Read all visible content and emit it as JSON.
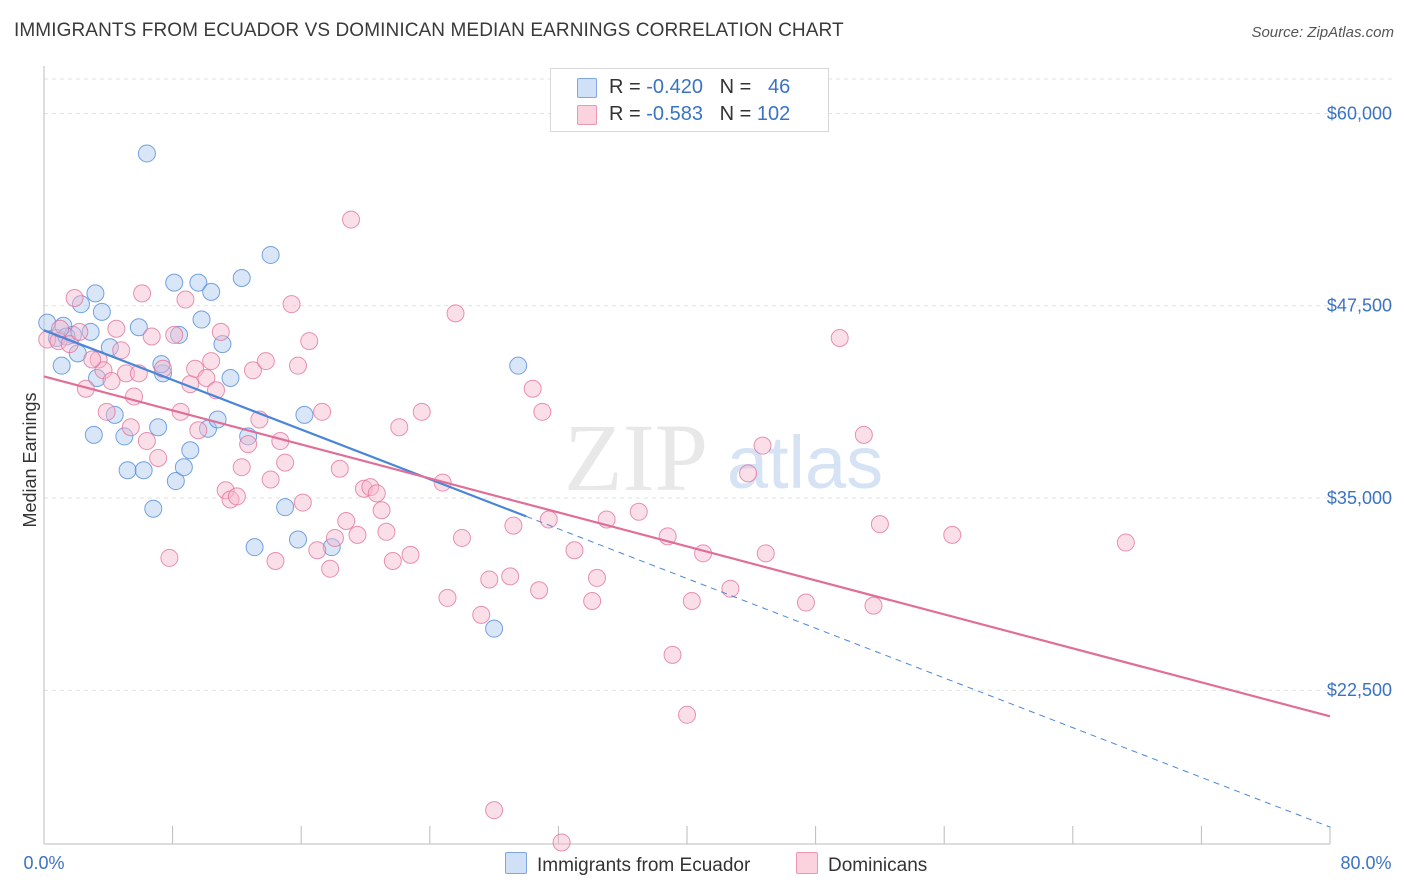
{
  "header": {
    "title": "IMMIGRANTS FROM ECUADOR VS DOMINICAN MEDIAN EARNINGS CORRELATION CHART",
    "source": "Source: ZipAtlas.com"
  },
  "watermark": {
    "zip": "ZIP",
    "atlas": "atlas"
  },
  "legend_top": {
    "rows": [
      {
        "r_label": "R = ",
        "r_value": "-0.420",
        "n_label": "N = ",
        "n_value": "46",
        "color": "#aac8f0"
      },
      {
        "r_label": "R = ",
        "r_value": "-0.583",
        "n_label": "N = ",
        "n_value": "102",
        "color": "#f6b8cb"
      }
    ]
  },
  "legend_bottom": [
    {
      "label": "Immigrants from Ecuador",
      "color": "#aac8f0"
    },
    {
      "label": "Dominicans",
      "color": "#f6b8cb"
    }
  ],
  "chart_data": {
    "type": "scatter",
    "title": "IMMIGRANTS FROM ECUADOR VS DOMINICAN MEDIAN EARNINGS CORRELATION CHART",
    "xlabel": "",
    "ylabel": "Median Earnings",
    "xlim": [
      0,
      80
    ],
    "ylim": [
      12500,
      62500
    ],
    "x_tick_labels": [
      "0.0%",
      "80.0%"
    ],
    "y_ticks": [
      22500,
      35000,
      47500,
      60000
    ],
    "y_tick_labels": [
      "$22,500",
      "$35,000",
      "$47,500",
      "$60,000"
    ],
    "grid": true,
    "legend_position": "top-center",
    "series": [
      {
        "name": "Immigrants from Ecuador",
        "color": "#4a86d8",
        "fill": "#aac8f0",
        "points": [
          [
            0.2,
            46.4
          ],
          [
            0.8,
            45.4
          ],
          [
            1.2,
            46.2
          ],
          [
            1.8,
            45.6
          ],
          [
            1.1,
            43.6
          ],
          [
            2.3,
            47.6
          ],
          [
            2.1,
            44.4
          ],
          [
            3.2,
            48.3
          ],
          [
            3.6,
            47.1
          ],
          [
            4.1,
            44.8
          ],
          [
            3.3,
            42.8
          ],
          [
            4.4,
            40.4
          ],
          [
            3.1,
            39.1
          ],
          [
            5.0,
            39.0
          ],
          [
            5.2,
            36.8
          ],
          [
            5.9,
            46.1
          ],
          [
            6.2,
            36.8
          ],
          [
            6.8,
            34.3
          ],
          [
            7.1,
            39.6
          ],
          [
            7.4,
            43.1
          ],
          [
            7.3,
            43.7
          ],
          [
            8.2,
            36.1
          ],
          [
            8.1,
            49.0
          ],
          [
            8.4,
            45.6
          ],
          [
            8.7,
            37.0
          ],
          [
            9.1,
            38.1
          ],
          [
            9.6,
            49.0
          ],
          [
            9.8,
            46.6
          ],
          [
            10.2,
            39.5
          ],
          [
            10.4,
            48.4
          ],
          [
            10.8,
            40.1
          ],
          [
            11.1,
            45.0
          ],
          [
            11.6,
            42.8
          ],
          [
            12.3,
            49.3
          ],
          [
            12.7,
            39.0
          ],
          [
            13.1,
            31.8
          ],
          [
            14.1,
            50.8
          ],
          [
            15.0,
            34.4
          ],
          [
            15.8,
            32.3
          ],
          [
            16.2,
            40.4
          ],
          [
            17.9,
            31.8
          ],
          [
            29.5,
            43.6
          ],
          [
            28.0,
            26.5
          ],
          [
            6.4,
            57.4
          ],
          [
            2.9,
            45.8
          ],
          [
            1.4,
            45.5
          ]
        ],
        "trend": {
          "x": [
            0,
            30
          ],
          "y": [
            45.9,
            33.8
          ],
          "dashed_to": [
            80,
            13.6
          ]
        }
      },
      {
        "name": "Dominicans",
        "color": "#e06f98",
        "fill": "#f6b8cb",
        "points": [
          [
            0.2,
            45.3
          ],
          [
            0.9,
            45.2
          ],
          [
            1.6,
            45.0
          ],
          [
            1.9,
            48.0
          ],
          [
            2.6,
            42.1
          ],
          [
            3.4,
            44.0
          ],
          [
            3.7,
            43.3
          ],
          [
            3.9,
            40.6
          ],
          [
            4.5,
            46.0
          ],
          [
            4.8,
            44.6
          ],
          [
            5.1,
            43.1
          ],
          [
            5.4,
            39.6
          ],
          [
            5.6,
            41.6
          ],
          [
            5.9,
            43.1
          ],
          [
            6.1,
            48.3
          ],
          [
            6.4,
            38.7
          ],
          [
            6.7,
            45.5
          ],
          [
            7.1,
            37.6
          ],
          [
            7.4,
            43.4
          ],
          [
            7.8,
            31.1
          ],
          [
            8.1,
            45.6
          ],
          [
            8.5,
            40.6
          ],
          [
            8.8,
            47.9
          ],
          [
            9.1,
            42.4
          ],
          [
            9.4,
            43.4
          ],
          [
            9.6,
            39.4
          ],
          [
            10.1,
            42.8
          ],
          [
            10.4,
            43.9
          ],
          [
            10.7,
            42.0
          ],
          [
            11.0,
            45.8
          ],
          [
            11.3,
            35.5
          ],
          [
            11.6,
            34.9
          ],
          [
            12.0,
            35.1
          ],
          [
            12.3,
            37.0
          ],
          [
            12.7,
            38.5
          ],
          [
            13.0,
            43.3
          ],
          [
            13.4,
            40.1
          ],
          [
            13.8,
            43.9
          ],
          [
            14.1,
            36.2
          ],
          [
            14.4,
            30.9
          ],
          [
            14.7,
            38.7
          ],
          [
            15.0,
            37.3
          ],
          [
            15.4,
            47.6
          ],
          [
            15.8,
            43.6
          ],
          [
            16.1,
            34.7
          ],
          [
            16.5,
            45.2
          ],
          [
            17.0,
            31.6
          ],
          [
            17.3,
            40.6
          ],
          [
            17.8,
            30.4
          ],
          [
            18.1,
            32.4
          ],
          [
            18.4,
            36.9
          ],
          [
            18.8,
            33.5
          ],
          [
            19.1,
            53.1
          ],
          [
            19.5,
            32.6
          ],
          [
            19.9,
            35.6
          ],
          [
            20.3,
            35.7
          ],
          [
            20.7,
            35.3
          ],
          [
            21.0,
            34.2
          ],
          [
            21.3,
            32.8
          ],
          [
            21.7,
            30.9
          ],
          [
            22.1,
            39.6
          ],
          [
            22.8,
            31.3
          ],
          [
            23.5,
            40.6
          ],
          [
            24.8,
            36.0
          ],
          [
            25.1,
            28.5
          ],
          [
            25.6,
            47.0
          ],
          [
            26.0,
            32.4
          ],
          [
            27.2,
            27.4
          ],
          [
            27.7,
            29.7
          ],
          [
            28.0,
            14.7
          ],
          [
            29.0,
            29.9
          ],
          [
            29.2,
            33.2
          ],
          [
            30.4,
            42.1
          ],
          [
            30.8,
            29.0
          ],
          [
            31.0,
            40.6
          ],
          [
            31.4,
            33.6
          ],
          [
            32.2,
            12.6
          ],
          [
            33.0,
            31.6
          ],
          [
            34.1,
            28.3
          ],
          [
            34.4,
            29.8
          ],
          [
            35.0,
            33.6
          ],
          [
            37.0,
            34.1
          ],
          [
            38.8,
            32.5
          ],
          [
            39.1,
            24.8
          ],
          [
            40.0,
            20.9
          ],
          [
            40.3,
            28.3
          ],
          [
            41.0,
            31.4
          ],
          [
            42.7,
            29.1
          ],
          [
            43.8,
            36.6
          ],
          [
            44.7,
            38.4
          ],
          [
            44.9,
            31.4
          ],
          [
            47.4,
            28.2
          ],
          [
            49.5,
            45.4
          ],
          [
            51.0,
            39.1
          ],
          [
            51.6,
            28.0
          ],
          [
            52.0,
            33.3
          ],
          [
            56.5,
            32.6
          ],
          [
            67.3,
            32.1
          ],
          [
            3.0,
            44.0
          ],
          [
            2.2,
            45.8
          ],
          [
            1.0,
            46.0
          ],
          [
            4.2,
            42.6
          ]
        ],
        "trend": {
          "x": [
            0,
            80
          ],
          "y": [
            42.9,
            20.8
          ]
        }
      }
    ]
  }
}
